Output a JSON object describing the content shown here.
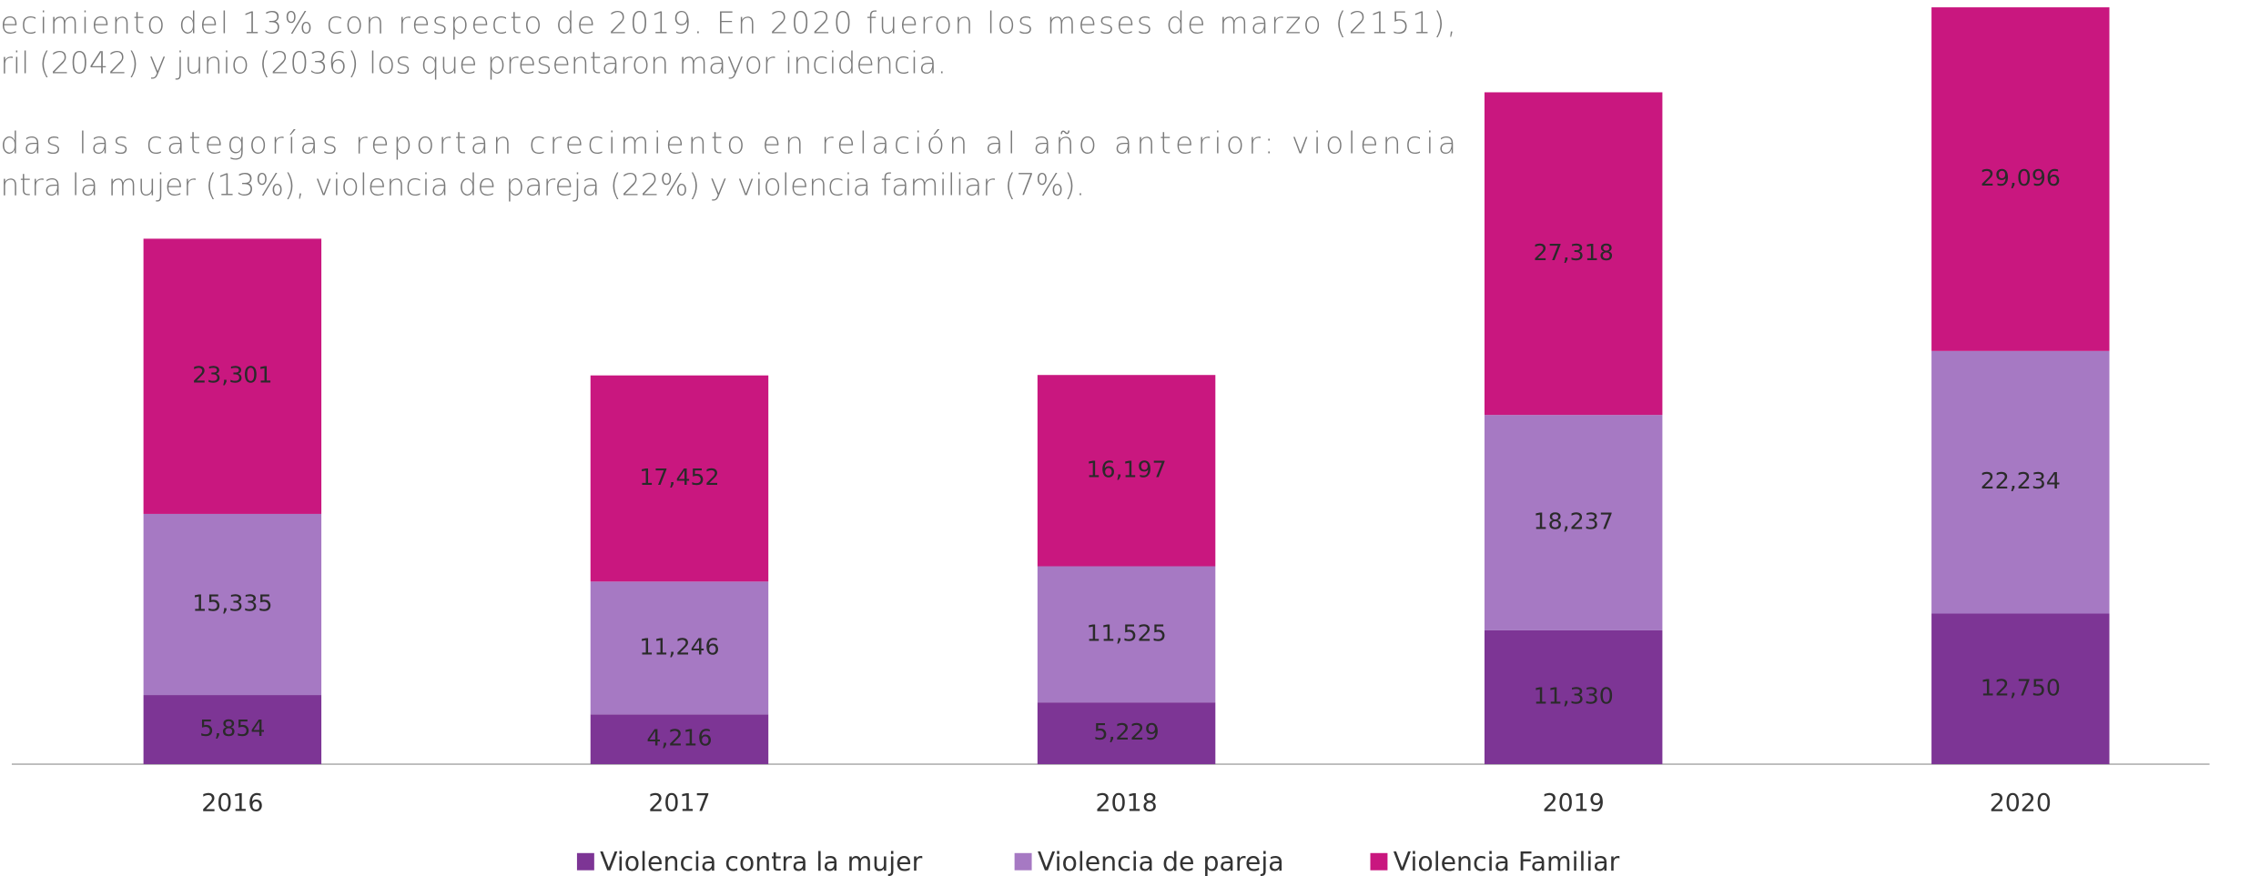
{
  "chart_data": {
    "type": "bar",
    "stacked": true,
    "text": [
      "ecimiento del 13% con respecto de 2019.  En 2020 fueron los meses de marzo (2151),",
      "ril (2042) y junio (2036) los que presentaron mayor incidencia.",
      "das las categorías reportan crecimiento en relación al año anterior:  violencia",
      "ntra la mujer (13%), violencia de pareja (22%) y violencia familiar (7%)."
    ],
    "categories": [
      "2016",
      "2017",
      "2018",
      "2019",
      "2020"
    ],
    "series": [
      {
        "name": "Violencia contra la mujer",
        "color": "#7d3595",
        "values": [
          5854,
          4216,
          5229,
          11330,
          12750
        ],
        "value_labels": [
          "5,854",
          "4,216",
          "5,229",
          "11,330",
          "12,750"
        ]
      },
      {
        "name": "Violencia de pareja",
        "color": "#a679c3",
        "values": [
          15335,
          11246,
          11525,
          18237,
          22234
        ],
        "value_labels": [
          "15,335",
          "11,246",
          "11,525",
          "18,237",
          "22,234"
        ]
      },
      {
        "name": "Violencia Familiar",
        "color": "#c9177f",
        "values": [
          23301,
          17452,
          16197,
          27318,
          29096
        ],
        "value_labels": [
          "23,301",
          "17,452",
          "16,197",
          "27,318",
          "29,096"
        ]
      }
    ],
    "ylim": [
      0,
      64700
    ],
    "legend": "bottom"
  }
}
